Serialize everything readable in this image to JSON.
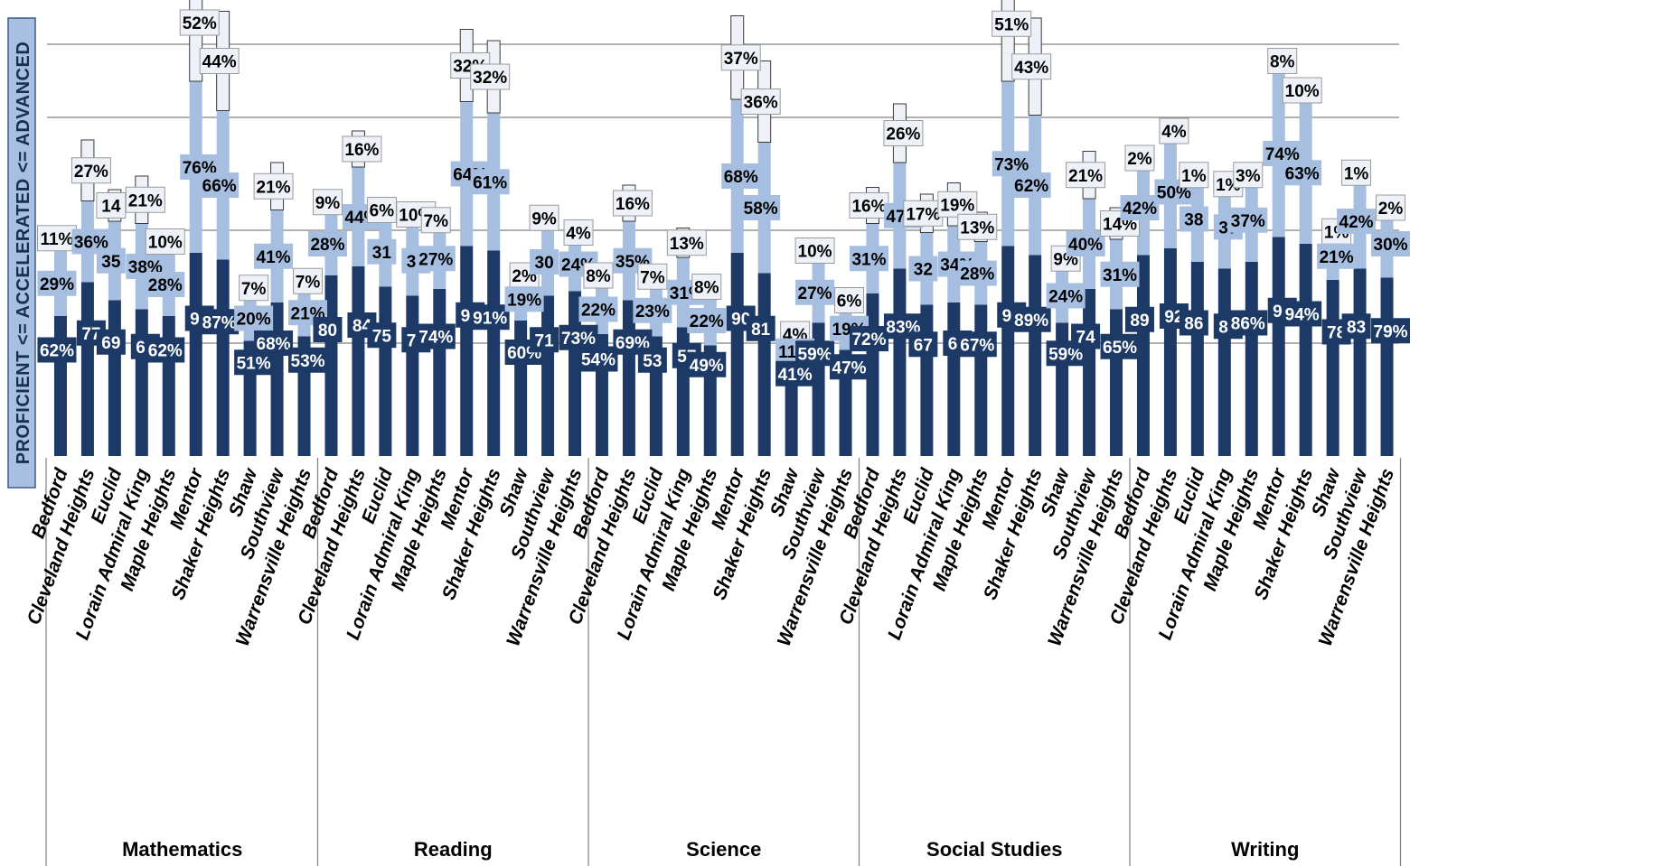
{
  "chart_data": {
    "type": "bar",
    "stacked": true,
    "ylabel": "PROFICIENT <= ACCELERATED <= ADVANCED",
    "grid": "horizontal",
    "ylim": [
      0,
      200
    ],
    "districts": [
      "Bedford",
      "Cleveland Heights",
      "Euclid",
      "Lorain Admiral King",
      "Maple Heights",
      "Mentor",
      "Shaker Heights",
      "Shaw",
      "Southview",
      "Warrensville Heights"
    ],
    "groups": [
      {
        "name": "Mathematics",
        "proficient": [
          62,
          77,
          69,
          65,
          62,
          90,
          87,
          51,
          68,
          53
        ],
        "proficient_labels": [
          "62%",
          "77",
          "69",
          "65",
          "62%",
          "90",
          "87%",
          "51%",
          "68%",
          "53%"
        ],
        "accelerated": [
          29,
          36,
          35,
          38,
          28,
          76,
          66,
          20,
          41,
          21
        ],
        "accelerated_labels": [
          "29%",
          "36%",
          "35",
          "38%",
          "28%",
          "76%",
          "66%",
          "20%",
          "41%",
          "21%"
        ],
        "advanced": [
          11,
          27,
          14,
          21,
          10,
          52,
          44,
          7,
          21,
          7
        ],
        "advanced_labels": [
          "11%",
          "27%",
          "14",
          "21%",
          "10%",
          "52%",
          "44%",
          "7%",
          "21%",
          "7%"
        ]
      },
      {
        "name": "Reading",
        "proficient": [
          80,
          84,
          75,
          71,
          74,
          93,
          91,
          60,
          71,
          73
        ],
        "proficient_labels": [
          "80",
          "84",
          "75",
          "71",
          "74%",
          "93",
          "91%",
          "60%",
          "71",
          "73%"
        ],
        "accelerated": [
          28,
          44,
          31,
          31,
          27,
          64,
          61,
          19,
          30,
          24
        ],
        "accelerated_labels": [
          "28%",
          "44%",
          "31",
          "31",
          "27%",
          "64%",
          "61%",
          "19%",
          "30",
          "24%"
        ],
        "advanced": [
          9,
          16,
          6,
          10,
          7,
          32,
          32,
          2,
          9,
          4
        ],
        "advanced_labels": [
          "9%",
          "16%",
          "6%",
          "10%",
          "7%",
          "32%",
          "32%",
          "2%",
          "9%",
          "4%"
        ]
      },
      {
        "name": "Science",
        "proficient": [
          54,
          69,
          53,
          57,
          49,
          90,
          81,
          41,
          59,
          47
        ],
        "proficient_labels": [
          "54%",
          "69%",
          "53",
          "57",
          "49%",
          "90",
          "81",
          "41%",
          "59%",
          "47%"
        ],
        "accelerated": [
          22,
          35,
          23,
          31,
          22,
          68,
          58,
          11,
          27,
          19
        ],
        "accelerated_labels": [
          "22%",
          "35%",
          "23%",
          "31%",
          "22%",
          "68%",
          "58%",
          "11%",
          "27%",
          "19%"
        ],
        "advanced": [
          8,
          16,
          7,
          13,
          8,
          37,
          36,
          4,
          10,
          6
        ],
        "advanced_labels": [
          "8%",
          "16%",
          "7%",
          "13%",
          "8%",
          "37%",
          "36%",
          "4%",
          "10%",
          "6%"
        ]
      },
      {
        "name": "Social Studies",
        "proficient": [
          72,
          83,
          67,
          68,
          67,
          93,
          89,
          59,
          74,
          65
        ],
        "proficient_labels": [
          "72%",
          "83%",
          "67",
          "68",
          "67%",
          "93",
          "89%",
          "59%",
          "74",
          "65%"
        ],
        "accelerated": [
          31,
          47,
          32,
          34,
          28,
          73,
          62,
          24,
          40,
          31
        ],
        "accelerated_labels": [
          "31%",
          "47%",
          "32",
          "34%",
          "28%",
          "73%",
          "62%",
          "24%",
          "40%",
          "31%"
        ],
        "advanced": [
          16,
          26,
          17,
          19,
          13,
          51,
          43,
          9,
          21,
          14
        ],
        "advanced_labels": [
          "16%",
          "26%",
          "17%",
          "19%",
          "13%",
          "51%",
          "43%",
          "9%",
          "21%",
          "14%"
        ]
      },
      {
        "name": "Writing",
        "proficient": [
          89,
          92,
          86,
          83,
          86,
          97,
          94,
          78,
          83,
          79
        ],
        "proficient_labels": [
          "89",
          "92",
          "86",
          "83",
          "86%",
          "97",
          "94%",
          "78",
          "83",
          "79%"
        ],
        "accelerated": [
          42,
          50,
          38,
          37,
          37,
          74,
          63,
          21,
          42,
          30
        ],
        "accelerated_labels": [
          "42%",
          "50%",
          "38",
          "37",
          "37%",
          "74%",
          "63%",
          "21%",
          "42%",
          "30%"
        ],
        "advanced": [
          2,
          4,
          1,
          1,
          3,
          8,
          10,
          1,
          1,
          2
        ],
        "advanced_labels": [
          "2%",
          "4%",
          "1%",
          "1%",
          "3%",
          "8%",
          "10%",
          "1%",
          "1%",
          "2%"
        ]
      }
    ]
  },
  "colors": {
    "proficient": "#1d3a66",
    "accelerated": "#a6bee0",
    "advanced": "#eef2f8"
  }
}
